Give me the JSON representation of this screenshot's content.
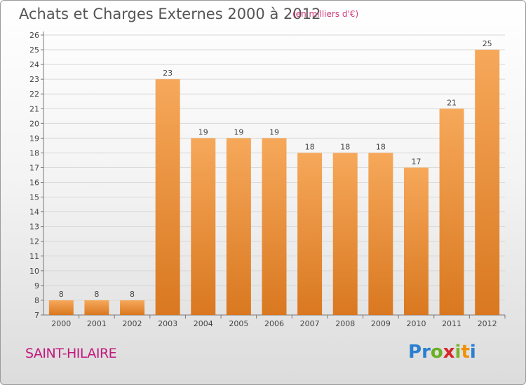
{
  "title": "Achats et Charges Externes 2000 à 2012",
  "unit_note": "(en milliers d'€)",
  "commune": "SAINT-HILAIRE",
  "logo": {
    "letters": [
      "P",
      "r",
      "o",
      "x",
      "i",
      "t",
      "i"
    ],
    "colors": [
      "#2a7fd0",
      "#2a7fd0",
      "#6ab023",
      "#d9262a",
      "#7ab42a",
      "#f29100",
      "#2a7fd0"
    ]
  },
  "colors": {
    "bar_light": "#f6a85a",
    "bar_dark": "#d97820",
    "grid": "#d8d8d8"
  },
  "chart_data": {
    "type": "bar",
    "categories": [
      "2000",
      "2001",
      "2002",
      "2003",
      "2004",
      "2005",
      "2006",
      "2007",
      "2008",
      "2009",
      "2010",
      "2011",
      "2012"
    ],
    "values": [
      8,
      8,
      8,
      23,
      19,
      19,
      19,
      18,
      18,
      18,
      17,
      21,
      25
    ],
    "ylim": [
      7,
      26
    ],
    "yticks": [
      7,
      8,
      9,
      10,
      11,
      12,
      13,
      14,
      15,
      16,
      17,
      18,
      19,
      20,
      21,
      22,
      23,
      24,
      25,
      26
    ],
    "grid": true
  }
}
